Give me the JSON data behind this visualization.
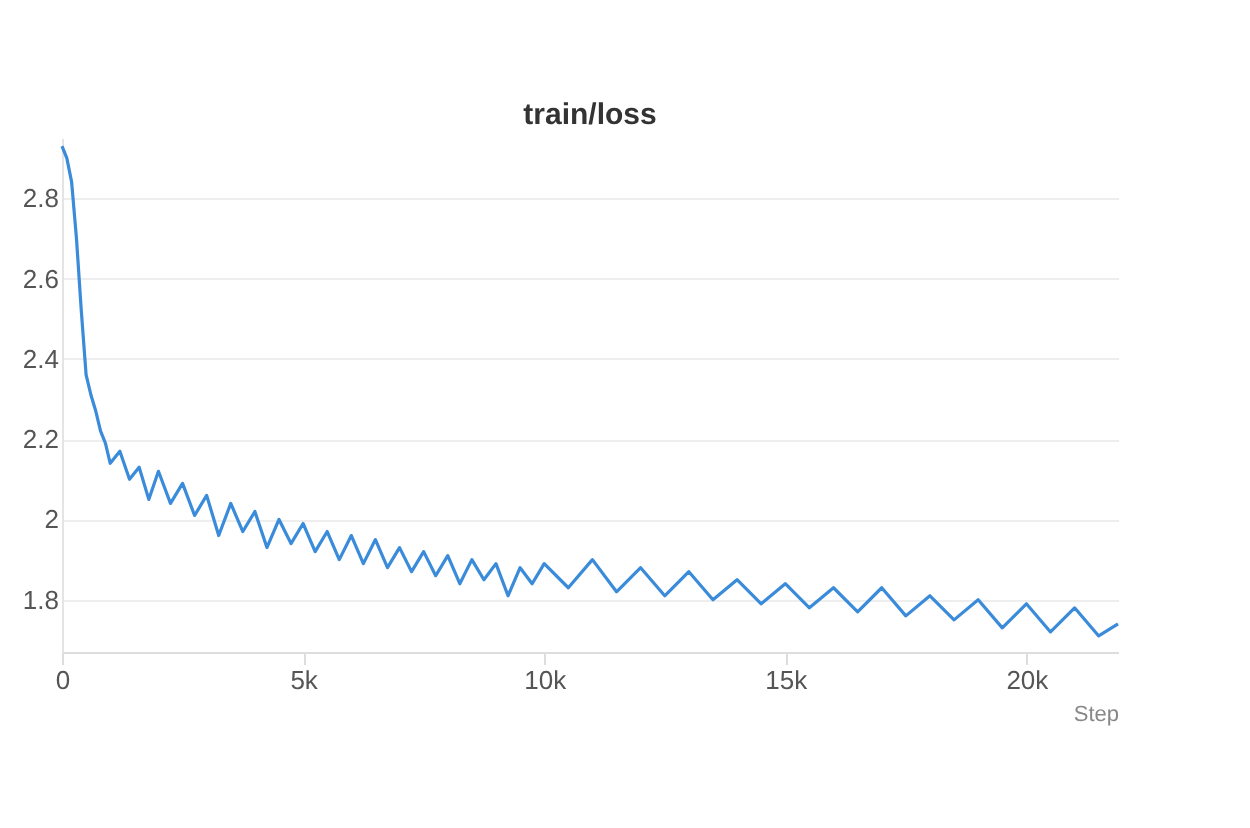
{
  "chart_data": {
    "type": "line",
    "title": "train/loss",
    "xlabel": "Step",
    "x": [
      0,
      100,
      200,
      300,
      400,
      500,
      600,
      700,
      800,
      900,
      1000,
      1200,
      1400,
      1600,
      1800,
      2000,
      2250,
      2500,
      2750,
      3000,
      3250,
      3500,
      3750,
      4000,
      4250,
      4500,
      4750,
      5000,
      5250,
      5500,
      5750,
      6000,
      6250,
      6500,
      6750,
      7000,
      7250,
      7500,
      7750,
      8000,
      8250,
      8500,
      8750,
      9000,
      9250,
      9500,
      9750,
      10000,
      10500,
      11000,
      11500,
      12000,
      12500,
      13000,
      13500,
      14000,
      14500,
      15000,
      15500,
      16000,
      16500,
      17000,
      17500,
      18000,
      18500,
      19000,
      19500,
      20000,
      20500,
      21000,
      21500,
      21900
    ],
    "series": [
      {
        "color": "#3a8bd9",
        "values": [
          2.93,
          2.9,
          2.84,
          2.7,
          2.52,
          2.36,
          2.31,
          2.27,
          2.22,
          2.19,
          2.14,
          2.17,
          2.1,
          2.13,
          2.05,
          2.12,
          2.04,
          2.09,
          2.01,
          2.06,
          1.96,
          2.04,
          1.97,
          2.02,
          1.93,
          2.0,
          1.94,
          1.99,
          1.92,
          1.97,
          1.9,
          1.96,
          1.89,
          1.95,
          1.88,
          1.93,
          1.87,
          1.92,
          1.86,
          1.91,
          1.84,
          1.9,
          1.85,
          1.89,
          1.81,
          1.88,
          1.84,
          1.89,
          1.83,
          1.9,
          1.82,
          1.88,
          1.81,
          1.87,
          1.8,
          1.85,
          1.79,
          1.84,
          1.78,
          1.83,
          1.77,
          1.83,
          1.76,
          1.81,
          1.75,
          1.8,
          1.73,
          1.79,
          1.72,
          1.78,
          1.71,
          1.74
        ]
      }
    ],
    "xlim": [
      0,
      21900
    ],
    "xticks": [
      0,
      {
        "value": 5000,
        "label": "5k"
      },
      {
        "value": 10000,
        "label": "10k"
      },
      {
        "value": 15000,
        "label": "15k"
      },
      {
        "value": 20000,
        "label": "20k"
      }
    ],
    "ylim": [
      1.67,
      2.95
    ],
    "yticks": [
      1.8,
      2,
      2.2,
      2.4,
      2.6,
      2.8
    ],
    "grid": "y",
    "legend": false,
    "line_style": "solid",
    "marker": "none"
  }
}
